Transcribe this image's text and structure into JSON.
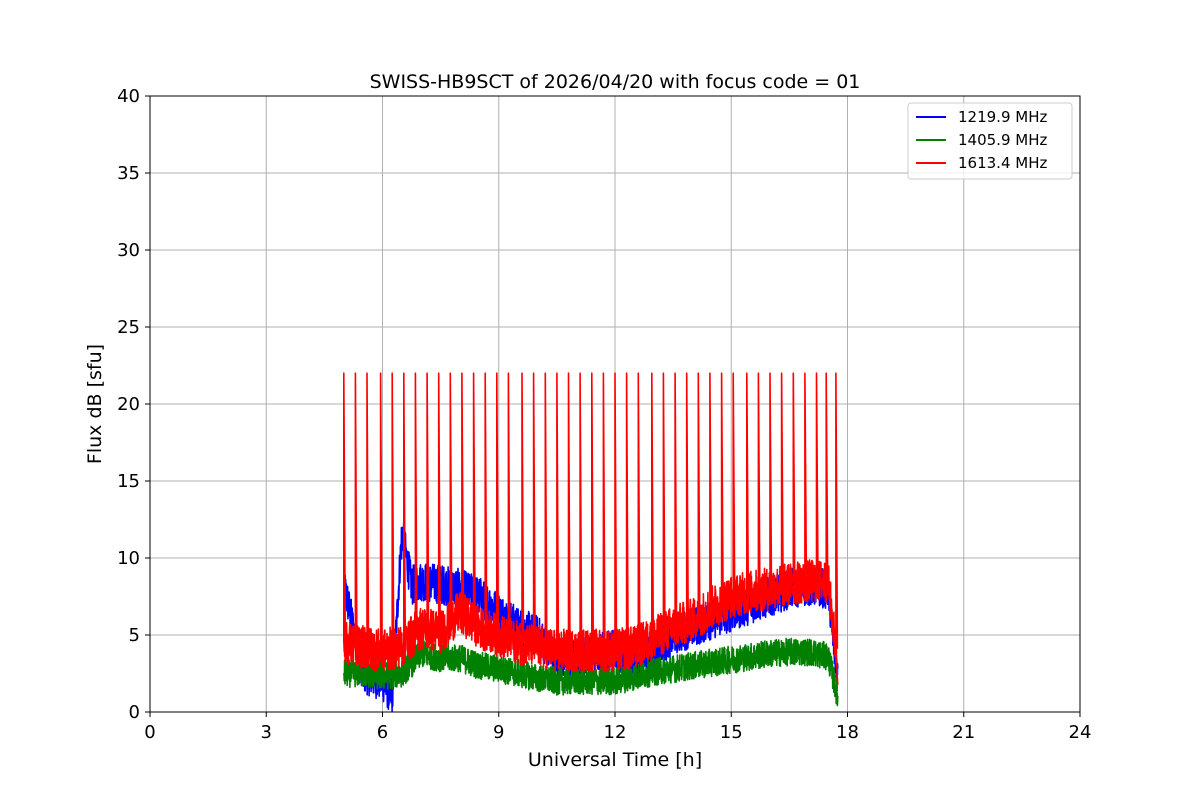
{
  "chart_data": {
    "type": "line",
    "title": "SWISS-HB9SCT of 2026/04/20 with focus code = 01",
    "xlabel": "Universal Time [h]",
    "ylabel": "Flux dB [sfu]",
    "xlim": [
      0,
      24
    ],
    "ylim": [
      0,
      40
    ],
    "xticks": [
      0,
      3,
      6,
      9,
      12,
      15,
      18,
      21,
      24
    ],
    "yticks": [
      0,
      5,
      10,
      15,
      20,
      25,
      30,
      35,
      40
    ],
    "grid": true,
    "legend_position": "top-right",
    "series": [
      {
        "name": "1219.9 MHz",
        "color": "#0000ff",
        "x": [
          5.0,
          5.5,
          6.0,
          6.25,
          6.5,
          6.75,
          7.0,
          7.5,
          8.0,
          8.5,
          9.0,
          9.5,
          10.0,
          10.5,
          11.0,
          11.5,
          12.0,
          12.5,
          13.0,
          13.5,
          14.0,
          14.5,
          15.0,
          15.5,
          16.0,
          16.5,
          17.0,
          17.5,
          17.75
        ],
        "y": [
          8.3,
          2.5,
          2.0,
          1.0,
          11.7,
          8.2,
          8.5,
          8.3,
          8.0,
          7.5,
          6.5,
          5.5,
          5.0,
          3.5,
          3.5,
          4.0,
          4.0,
          3.0,
          4.0,
          5.0,
          5.5,
          6.0,
          6.5,
          7.0,
          7.5,
          8.0,
          8.2,
          8.0,
          2.0
        ]
      },
      {
        "name": "1405.9 MHz",
        "color": "#008000",
        "x": [
          5.0,
          5.5,
          6.0,
          6.5,
          7.0,
          7.5,
          8.0,
          8.5,
          9.0,
          9.5,
          10.0,
          10.5,
          11.0,
          11.5,
          12.0,
          12.5,
          13.0,
          13.5,
          14.0,
          14.5,
          15.0,
          15.5,
          16.0,
          16.5,
          17.0,
          17.5,
          17.75
        ],
        "y": [
          2.5,
          2.5,
          2.3,
          2.5,
          3.8,
          3.5,
          3.5,
          3.0,
          2.8,
          2.5,
          2.2,
          2.0,
          2.0,
          2.0,
          2.0,
          2.3,
          2.6,
          2.8,
          3.0,
          3.2,
          3.4,
          3.6,
          3.8,
          3.9,
          3.9,
          3.6,
          1.0
        ]
      },
      {
        "name": "1613.4 MHz",
        "color": "#ff0000",
        "x": [
          5.0,
          5.5,
          6.0,
          6.5,
          7.0,
          7.5,
          8.0,
          8.5,
          9.0,
          9.5,
          10.0,
          10.5,
          11.0,
          11.5,
          12.0,
          12.5,
          13.0,
          13.5,
          14.0,
          14.5,
          15.0,
          15.5,
          16.0,
          16.5,
          17.0,
          17.5,
          17.75
        ],
        "y": [
          4.5,
          4.2,
          4.0,
          4.3,
          5.5,
          5.2,
          6.5,
          5.5,
          5.0,
          4.5,
          4.3,
          4.0,
          4.0,
          4.0,
          4.0,
          4.2,
          4.8,
          5.5,
          6.0,
          6.8,
          7.5,
          7.8,
          8.0,
          8.3,
          8.5,
          8.5,
          3.0
        ]
      }
    ],
    "calibration_spikes": {
      "series": "1613.4 MHz",
      "peak": 22,
      "x": [
        5.0,
        5.3,
        5.6,
        5.95,
        6.25,
        6.55,
        6.85,
        7.15,
        7.45,
        7.75,
        8.05,
        8.35,
        8.65,
        8.95,
        9.25,
        9.6,
        9.9,
        10.2,
        10.5,
        10.8,
        11.1,
        11.4,
        11.7,
        12.0,
        12.3,
        12.6,
        12.95,
        13.25,
        13.55,
        13.85,
        14.15,
        14.45,
        14.75,
        15.05,
        15.4,
        15.7,
        16.0,
        16.3,
        16.6,
        16.9,
        17.2,
        17.45,
        17.7
      ]
    }
  }
}
